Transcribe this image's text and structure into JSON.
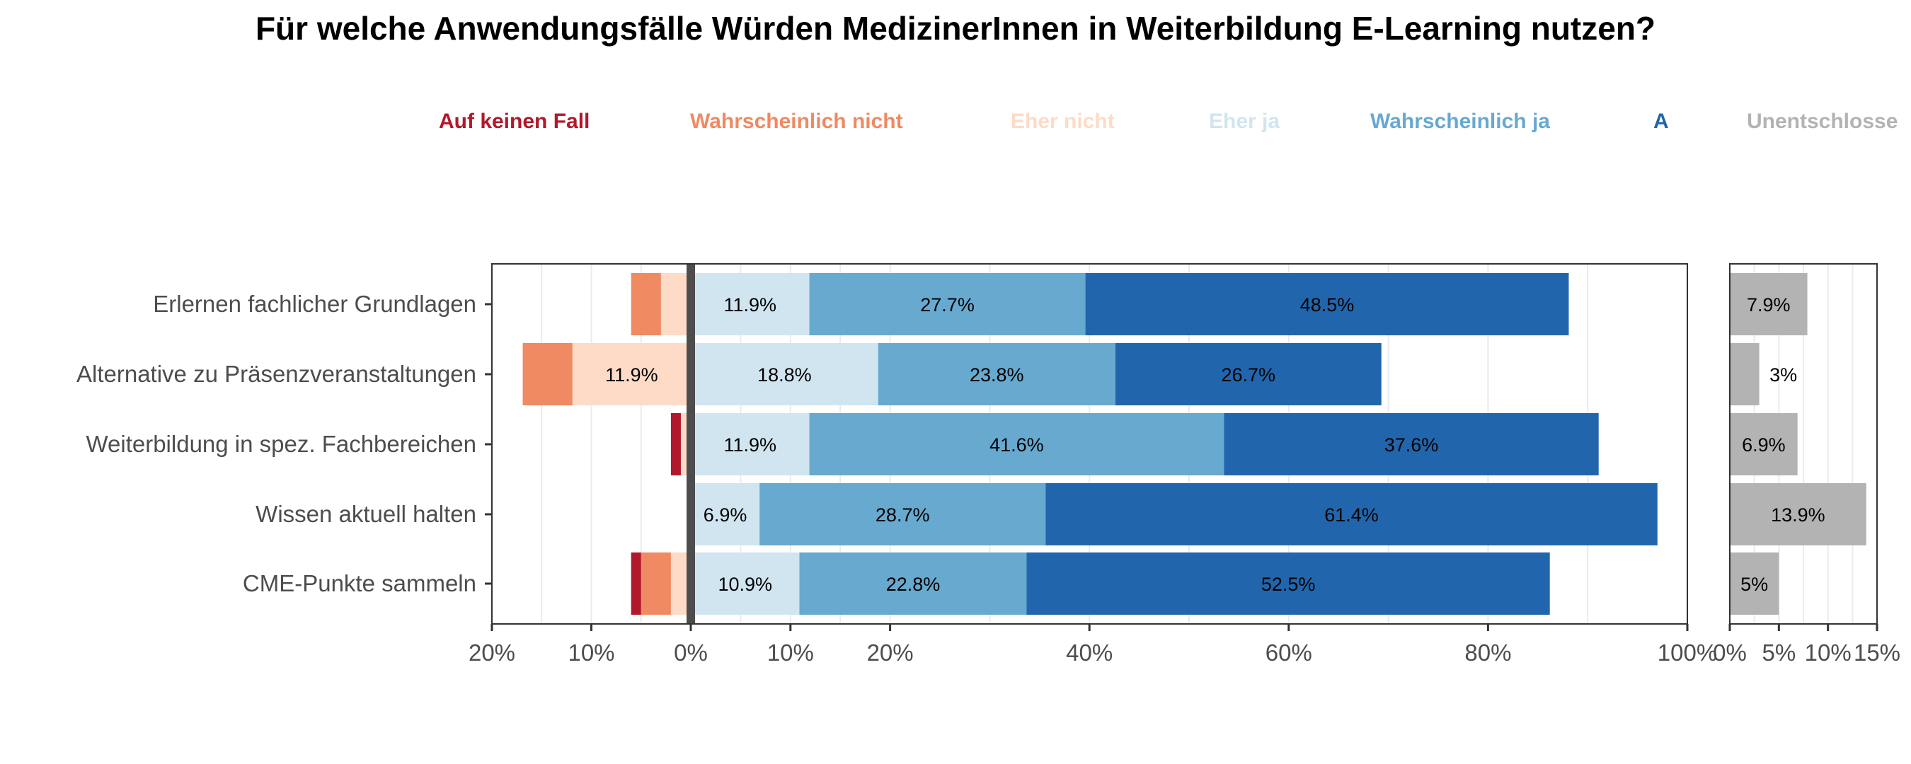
{
  "chart_data": {
    "type": "bar",
    "subtype": "diverging-stacked-bar",
    "title": "Für welche Anwendungsfälle Würden MedizinerInnen in Weiterbildung E-Learning nutzen?",
    "legend": [
      {
        "label": "Auf keinen Fall",
        "color": "#b2182b"
      },
      {
        "label": "Wahrscheinlich nicht",
        "color": "#ef8a62"
      },
      {
        "label": "Eher nicht",
        "color": "#fddbc7"
      },
      {
        "label": "Eher ja",
        "color": "#d1e5f0"
      },
      {
        "label": "Wahrscheinlich ja",
        "color": "#67a9cf"
      },
      {
        "label": "A",
        "color": "#2166ac"
      },
      {
        "label": "Unentschlosse",
        "color": "#b3b3b3"
      }
    ],
    "legend_position": "top",
    "categories": [
      "Erlernen fachlicher Grundlagen",
      "Alternative zu Präsenzveranstaltungen",
      "Weiterbildung in spez. Fachbereichen",
      "Wissen aktuell halten",
      "CME-Punkte sammeln"
    ],
    "series": [
      {
        "name": "Auf keinen Fall",
        "color": "#b2182b",
        "values": [
          0,
          0,
          1.0,
          0,
          1.0
        ]
      },
      {
        "name": "Wahrscheinlich nicht",
        "color": "#ef8a62",
        "values": [
          3.0,
          5.0,
          0,
          0,
          3.0
        ]
      },
      {
        "name": "Eher nicht",
        "color": "#fddbc7",
        "values": [
          3.0,
          11.9,
          1.0,
          0,
          2.0
        ]
      },
      {
        "name": "Eher ja",
        "color": "#d1e5f0",
        "values": [
          11.9,
          18.8,
          11.9,
          6.9,
          10.9
        ]
      },
      {
        "name": "Wahrscheinlich ja",
        "color": "#67a9cf",
        "values": [
          27.7,
          23.8,
          41.6,
          28.7,
          22.8
        ]
      },
      {
        "name": "A",
        "color": "#2166ac",
        "values": [
          48.5,
          26.7,
          37.6,
          61.4,
          52.5
        ]
      }
    ],
    "undecided": {
      "name": "Unentschlosse",
      "color": "#b3b3b3",
      "values": [
        7.9,
        3.0,
        6.9,
        13.9,
        5.0
      ]
    },
    "value_labels": [
      [
        "",
        "",
        "",
        "11.9%",
        "27.7%",
        "48.5%"
      ],
      [
        "",
        "",
        "11.9%",
        "18.8%",
        "23.8%",
        "26.7%"
      ],
      [
        "",
        "",
        "",
        "11.9%",
        "41.6%",
        "37.6%"
      ],
      [
        "",
        "",
        "",
        "6.9%",
        "28.7%",
        "61.4%"
      ],
      [
        "",
        "",
        "",
        "10.9%",
        "22.8%",
        "52.5%"
      ]
    ],
    "undecided_labels": [
      "7.9%",
      "3%",
      "6.9%",
      "13.9%",
      "5%"
    ],
    "main_axis": {
      "xlim": [
        -20,
        100
      ],
      "ticks": [
        -20,
        -10,
        0,
        10,
        20,
        40,
        60,
        80,
        100
      ],
      "tick_labels": [
        "20%",
        "10%",
        "0%",
        "10%",
        "20%",
        "40%",
        "60%",
        "80%",
        "100%"
      ],
      "grid": true
    },
    "undecided_axis": {
      "xlim": [
        0,
        15
      ],
      "ticks": [
        0,
        5,
        10,
        15
      ],
      "tick_labels": [
        "0%",
        "5%",
        "10%",
        "15%"
      ],
      "grid": true
    },
    "grid_color": "#ebebeb",
    "zero_line_color": "#4d4d4d"
  }
}
